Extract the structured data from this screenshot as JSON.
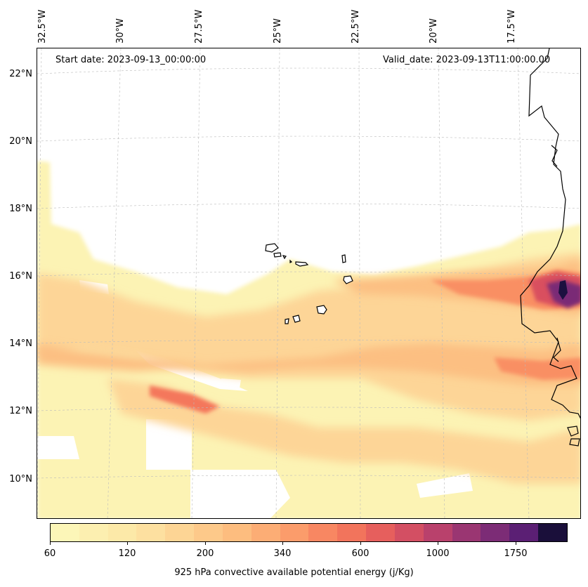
{
  "map": {
    "start_date": "Start date: 2023-09-13_00:00:00",
    "valid_date": "Valid_date: 2023-09-13T11:00:00.00",
    "lon_labels": [
      "32.5°W",
      "30°W",
      "27.5°W",
      "25°W",
      "22.5°W",
      "20°W",
      "17.5°W"
    ],
    "lat_labels": [
      "22°N",
      "20°N",
      "18°N",
      "16°N",
      "14°N",
      "12°N",
      "10°N"
    ],
    "extent": {
      "lon_min": -33.0,
      "lon_max": -16.0,
      "lat_min": 8.9,
      "lat_max": 22.8
    },
    "variable": "925 hPa convective available potential energy",
    "coastline_color": "#000000",
    "gridline_color": "#bbbbbb"
  },
  "colorbar": {
    "label": "925 hPa convective available potential energy (j/Kg)",
    "tick_labels": [
      "60",
      "120",
      "200",
      "340",
      "600",
      "1000",
      "1750"
    ],
    "colors": [
      "#fcf6b8",
      "#fcefb0",
      "#fce9a8",
      "#fde0a0",
      "#fdd595",
      "#fdc98a",
      "#fdbd7f",
      "#fcad75",
      "#fb9c6b",
      "#f88762",
      "#f2745c",
      "#e65f5d",
      "#d34f63",
      "#b9416c",
      "#9a3672",
      "#7c2c76",
      "#5b1f74",
      "#1a0f3a"
    ]
  }
}
